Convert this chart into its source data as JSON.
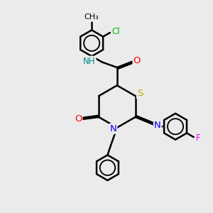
{
  "bg_color": "#ebebeb",
  "bond_color": "#000000",
  "bond_width": 1.8,
  "atom_colors": {
    "N": "#0000ff",
    "O": "#ff0000",
    "S": "#bbaa00",
    "Cl": "#00bb00",
    "F": "#ee00ee",
    "NH": "#008888",
    "C": "#000000"
  },
  "font_size": 8.5,
  "fig_size": [
    3.0,
    3.0
  ],
  "dpi": 100
}
